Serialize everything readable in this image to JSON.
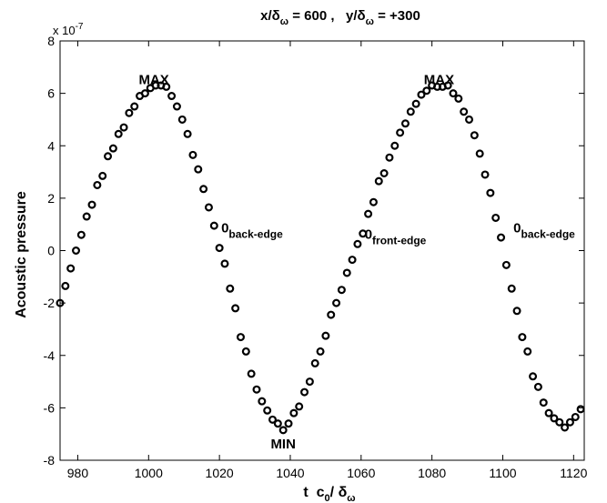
{
  "chart_data": {
    "type": "scatter",
    "title": {
      "part1_main": "x/δ",
      "part1_sub": "ω",
      "part1_rest": " = 600 ,   ",
      "part2_main": "y/δ",
      "part2_sub": "ω",
      "part2_rest": " = +300"
    },
    "xlabel": {
      "main": "t  c",
      "sub1": "0",
      "mid": "/ δ",
      "sub2": "ω"
    },
    "ylabel": "Acoustic pressure",
    "y_exponent": {
      "base": "x 10",
      "power": "-7"
    },
    "xlim": [
      975,
      1123
    ],
    "ylim": [
      -8,
      8
    ],
    "xticks": [
      980,
      1000,
      1020,
      1040,
      1060,
      1080,
      1100,
      1120
    ],
    "yticks": [
      -8,
      -6,
      -4,
      -2,
      0,
      2,
      4,
      6,
      8
    ],
    "ytick_labels": [
      "-8",
      "-6",
      "-4",
      "-2",
      "0",
      "2",
      "4",
      "6",
      "8"
    ],
    "xtick_labels": [
      "980",
      "1000",
      "1020",
      "1040",
      "1060",
      "1080",
      "1100",
      "1120"
    ],
    "grid": false,
    "marker": "open-circle",
    "series": [
      {
        "x": [
          975.0,
          976.5,
          978.0,
          979.5,
          981.0,
          982.5,
          984.0,
          985.5,
          987.0,
          988.5,
          990.0,
          991.5,
          993.0,
          994.5,
          996.0,
          997.5,
          999.0,
          1000.5,
          1002.0,
          1003.5,
          1005.0,
          1006.5,
          1008.0,
          1009.5,
          1011.0,
          1012.5,
          1014.0,
          1015.5,
          1017.0,
          1018.5,
          1020.0,
          1021.5,
          1023.0,
          1024.5,
          1026.0,
          1027.5,
          1029.0,
          1030.5,
          1032.0,
          1033.5,
          1035.0,
          1036.5,
          1038.0,
          1039.5,
          1041.0,
          1042.5,
          1044.0,
          1045.5,
          1047.0,
          1048.5,
          1050.0,
          1051.5,
          1053.0,
          1054.5,
          1056.0,
          1057.5,
          1059.0,
          1060.5,
          1062.0,
          1063.5,
          1065.0,
          1066.5,
          1068.0,
          1069.5,
          1071.0,
          1072.5,
          1074.0,
          1075.5,
          1077.0,
          1078.5,
          1080.0,
          1081.5,
          1083.0,
          1084.5,
          1086.0,
          1087.5,
          1089.0,
          1090.5,
          1092.0,
          1093.5,
          1095.0,
          1096.5,
          1098.0,
          1099.5,
          1101.0,
          1102.5,
          1104.0,
          1105.5,
          1107.0,
          1108.5,
          1110.0,
          1111.5,
          1113.0,
          1114.5,
          1116.0,
          1117.5,
          1119.0,
          1120.5,
          1122.0
        ],
        "y": [
          -2.0,
          -1.35,
          -0.68,
          0.0,
          0.6,
          1.3,
          1.75,
          2.5,
          2.85,
          3.6,
          3.9,
          4.45,
          4.7,
          5.25,
          5.5,
          5.9,
          6.0,
          6.2,
          6.3,
          6.3,
          6.25,
          5.9,
          5.5,
          5.0,
          4.45,
          3.65,
          3.1,
          2.35,
          1.65,
          0.95,
          0.1,
          -0.5,
          -1.45,
          -2.2,
          -3.3,
          -3.85,
          -4.7,
          -5.3,
          -5.75,
          -6.1,
          -6.45,
          -6.6,
          -6.85,
          -6.6,
          -6.2,
          -5.95,
          -5.4,
          -5.0,
          -4.3,
          -3.85,
          -3.25,
          -2.45,
          -2.0,
          -1.5,
          -0.85,
          -0.35,
          0.25,
          0.65,
          1.4,
          1.85,
          2.65,
          2.95,
          3.55,
          4.0,
          4.5,
          4.85,
          5.3,
          5.6,
          5.95,
          6.1,
          6.3,
          6.25,
          6.25,
          6.3,
          6.0,
          5.8,
          5.3,
          5.0,
          4.4,
          3.7,
          2.9,
          2.2,
          1.25,
          0.5,
          -0.55,
          -1.45,
          -2.3,
          -3.3,
          -3.85,
          -4.8,
          -5.2,
          -5.8,
          -6.2,
          -6.4,
          -6.55,
          -6.75,
          -6.55,
          -6.35,
          -6.05
        ]
      }
    ],
    "annotations": [
      {
        "main": "MAX",
        "sub": "",
        "x": 1001.5,
        "y": 6.35
      },
      {
        "main": "MAX",
        "sub": "",
        "x": 1082.0,
        "y": 6.35
      },
      {
        "main": "MIN",
        "sub": "",
        "x": 1038.0,
        "y": -7.55
      },
      {
        "main": "0",
        "sub": "back-edge",
        "x": 1020.5,
        "y": 0.7
      },
      {
        "main": "0",
        "sub": "front-edge",
        "x": 1061.0,
        "y": 0.45
      },
      {
        "main": "0",
        "sub": "back-edge",
        "x": 1103.0,
        "y": 0.7
      }
    ]
  }
}
